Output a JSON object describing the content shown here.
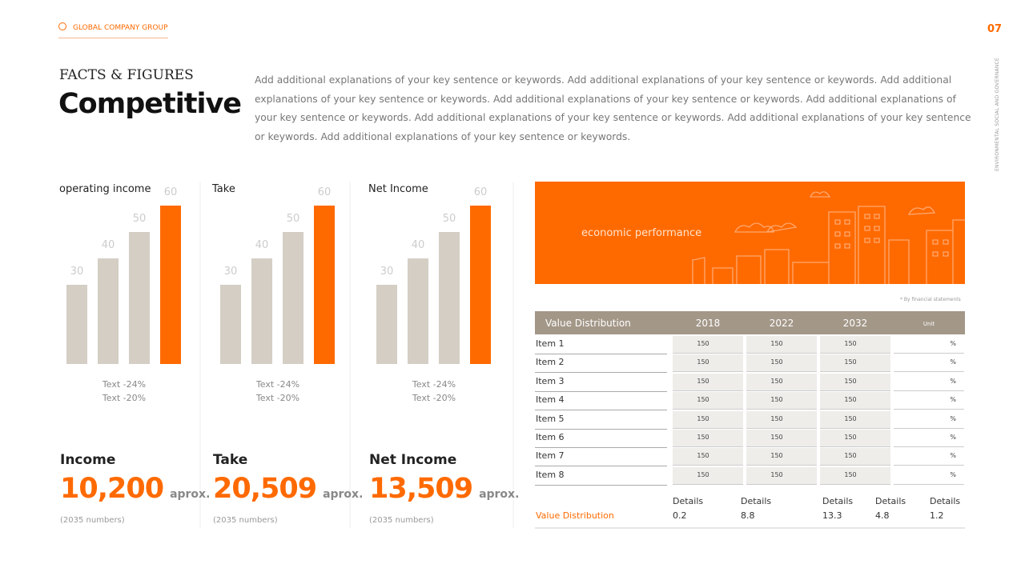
{
  "header": {
    "brand": "GLOBAL COMPANY GROUP",
    "page": "07",
    "side_note": "ENVIRONMENTAL SOCIAL AND GOVERNANCE"
  },
  "intro": {
    "kicker": "FACTS & FIGURES",
    "title": "Competitive",
    "text": "Add additional explanations of your key sentence or keywords. Add additional explanations of your key sentence or keywords. Add additional explanations of your key sentence or keywords. Add additional explanations of your key sentence or keywords. Add additional explanations of your key sentence or keywords. Add additional explanations of your key sentence or keywords. Add additional explanations of your key sentence or keywords. Add additional explanations of your key sentence or keywords."
  },
  "chart_data": [
    {
      "type": "bar",
      "title": "operating income",
      "values": [
        30,
        40,
        50,
        60
      ],
      "colors": [
        "#d4cec5",
        "#d4cec5",
        "#d4cec5",
        "#ff6a00"
      ],
      "notes": [
        "Text -24%",
        "Text -20%"
      ],
      "label": "Income",
      "amount": "10,200",
      "suffix": "aprox.",
      "footnote": "(2035 numbers)"
    },
    {
      "type": "bar",
      "title": "Take",
      "values": [
        30,
        40,
        50,
        60
      ],
      "colors": [
        "#d4cec5",
        "#d4cec5",
        "#d4cec5",
        "#ff6a00"
      ],
      "notes": [
        "Text -24%",
        "Text -20%"
      ],
      "label": "Take",
      "amount": "20,509",
      "suffix": "aprox.",
      "footnote": "(2035 numbers)"
    },
    {
      "type": "bar",
      "title": "Net Income",
      "values": [
        30,
        40,
        50,
        60
      ],
      "colors": [
        "#d4cec5",
        "#d4cec5",
        "#d4cec5",
        "#ff6a00"
      ],
      "notes": [
        "Text -24%",
        "Text -20%"
      ],
      "label": "Net Income",
      "amount": "13,509",
      "suffix": "aprox.",
      "footnote": "(2035 numbers)"
    }
  ],
  "banner": {
    "text": "economic performance",
    "note": "* By financial statements"
  },
  "table": {
    "header": [
      "Value Distribution",
      "2018",
      "2022",
      "2032",
      "Unit"
    ],
    "rows": [
      [
        "Item 1",
        150,
        150,
        150,
        "%"
      ],
      [
        "Item 2",
        150,
        150,
        150,
        "%"
      ],
      [
        "Item 3",
        150,
        150,
        150,
        "%"
      ],
      [
        "Item 4",
        150,
        150,
        150,
        "%"
      ],
      [
        "Item 5",
        150,
        150,
        150,
        "%"
      ],
      [
        "Item 6",
        150,
        150,
        150,
        "%"
      ],
      [
        "Item 7",
        150,
        150,
        150,
        "%"
      ],
      [
        "Item 8",
        150,
        150,
        150,
        "%"
      ]
    ],
    "footer": {
      "label": "Value Distribution",
      "headers": [
        "Details",
        "Details",
        "Details",
        "Details",
        "Details"
      ],
      "values": [
        0.2,
        8.8,
        13.3,
        4.8,
        1.2
      ]
    }
  }
}
